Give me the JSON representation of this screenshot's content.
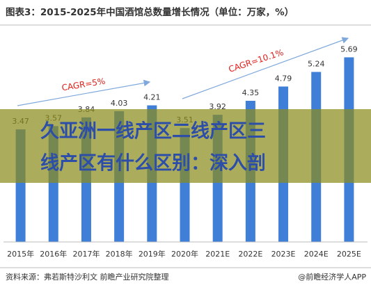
{
  "chart_data": {
    "type": "bar",
    "title": "图表3：2015-2025年中国酒馆总数量增长情况（单位：万家，%）",
    "categories": [
      "2015年",
      "2016年",
      "2017年",
      "2018年",
      "2019年",
      "2020年",
      "2021E",
      "2022E",
      "2023E",
      "2024E",
      "2025E"
    ],
    "values": [
      3.47,
      3.57,
      3.84,
      4.03,
      4.21,
      3.51,
      3.92,
      4.35,
      4.79,
      5.24,
      5.69
    ],
    "color": "#3f7fd8",
    "ylim": [
      0,
      6.3
    ],
    "annotations": [
      "CAGR=5%",
      "CAGR=10.1%"
    ],
    "source": "资料来源：弗若斯特沙利文 前瞻产业研究院整理",
    "brand": "@前瞻经济学人APP"
  },
  "overlay": {
    "lines": [
      "久亚洲一线产区二线产区三",
      "线产区有什么区别：深入剖"
    ]
  }
}
